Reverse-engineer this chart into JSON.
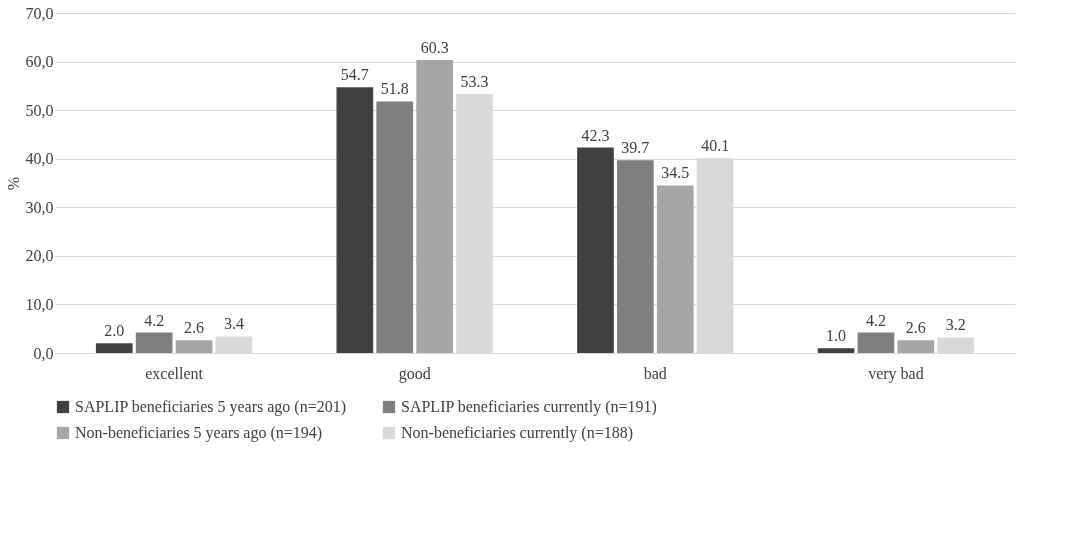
{
  "chart_data": {
    "type": "bar",
    "ylabel": "%",
    "categories": [
      "excellent",
      "good",
      "bad",
      "very bad"
    ],
    "series": [
      {
        "name": "SAPLIP beneficiaries 5 years ago  (n=201)",
        "color": "#404040",
        "values": [
          2.0,
          54.7,
          42.3,
          1.0
        ],
        "value_labels": [
          "2.0",
          "54.7",
          "42.3",
          "1.0"
        ]
      },
      {
        "name": "SAPLIP beneficiaries currently (n=191)",
        "color": "#7f7f7f",
        "values": [
          4.2,
          51.8,
          39.7,
          4.2
        ],
        "value_labels": [
          "4.2",
          "51.8",
          "39.7",
          "4.2"
        ]
      },
      {
        "name": "Non-beneficiaries 5 years ago  (n=194)",
        "color": "#a6a6a6",
        "values": [
          2.6,
          60.3,
          34.5,
          2.6
        ],
        "value_labels": [
          "2.6",
          "60.3",
          "34.5",
          "2.6"
        ]
      },
      {
        "name": "Non-beneficiaries currently (n=188)",
        "color": "#d9d9d9",
        "values": [
          3.4,
          53.3,
          40.1,
          3.2
        ],
        "value_labels": [
          "3.4",
          "53.3",
          "40.1",
          "3.2"
        ]
      }
    ],
    "ylim": [
      0,
      70
    ],
    "yticks": [
      {
        "value": 0,
        "label": "0,0"
      },
      {
        "value": 10,
        "label": "10,0"
      },
      {
        "value": 20,
        "label": "20,0"
      },
      {
        "value": 30,
        "label": "30,0"
      },
      {
        "value": 40,
        "label": "40,0"
      },
      {
        "value": 50,
        "label": "50,0"
      },
      {
        "value": 60,
        "label": "60,0"
      },
      {
        "value": 70,
        "label": "70,0"
      }
    ],
    "grid": "y",
    "legend": "bottom"
  }
}
